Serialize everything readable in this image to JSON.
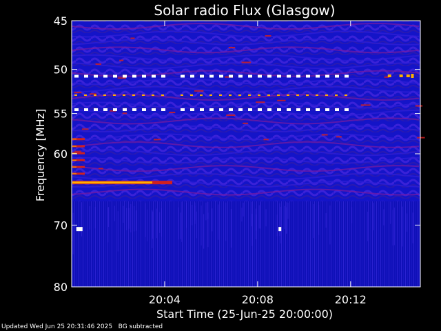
{
  "chart_data": {
    "type": "heatmap",
    "title": "Solar radio Flux (Glasgow)",
    "xlabel": "Start Time (25-Jun-25 20:00:00)",
    "ylabel": "Frequency [MHz]",
    "x_range_minutes": [
      0,
      15
    ],
    "x_ticks": [
      {
        "value": 4,
        "label": "20:04"
      },
      {
        "value": 8,
        "label": "20:08"
      },
      {
        "value": 12,
        "label": "20:12"
      }
    ],
    "y_scale": "log",
    "y_range": [
      45,
      80
    ],
    "y_ticks": [
      {
        "value": 45,
        "label": "45"
      },
      {
        "value": 50,
        "label": "50"
      },
      {
        "value": 55,
        "label": "55"
      },
      {
        "value": 60,
        "label": "60"
      },
      {
        "value": 70,
        "label": "70"
      },
      {
        "value": 80,
        "label": "80"
      }
    ],
    "colors": {
      "background": "#1010c0",
      "low": "#2020e0",
      "mid": "#7a1aa0",
      "high": "#d02020",
      "peak": "#ffb000",
      "max": "#ffffff"
    },
    "features": [
      {
        "kind": "continuous-band",
        "freq_mhz": 63.8,
        "t_start_min": 0,
        "t_end_min": 4.3,
        "level": "peak"
      },
      {
        "kind": "interference-line",
        "freq_mhz": 50.7,
        "t_start_min": 0,
        "t_end_min": 11.8,
        "level": "max"
      },
      {
        "kind": "interference-line",
        "freq_mhz": 52.9,
        "t_start_min": 0,
        "t_end_min": 11.8,
        "level": "peak"
      },
      {
        "kind": "interference-line",
        "freq_mhz": 54.5,
        "t_start_min": 0,
        "t_end_min": 11.8,
        "level": "max"
      },
      {
        "kind": "spot",
        "freq_mhz": 70.6,
        "t_min": 0.2,
        "level": "max"
      },
      {
        "kind": "spot",
        "freq_mhz": 70.6,
        "t_min": 8.9,
        "level": "max"
      },
      {
        "kind": "spot",
        "freq_mhz": 50.7,
        "t_min": 14.6,
        "level": "peak"
      }
    ]
  },
  "footer": {
    "updated": "Updated Wed Jun 25 20:31:46 2025",
    "note": "BG subtracted"
  }
}
